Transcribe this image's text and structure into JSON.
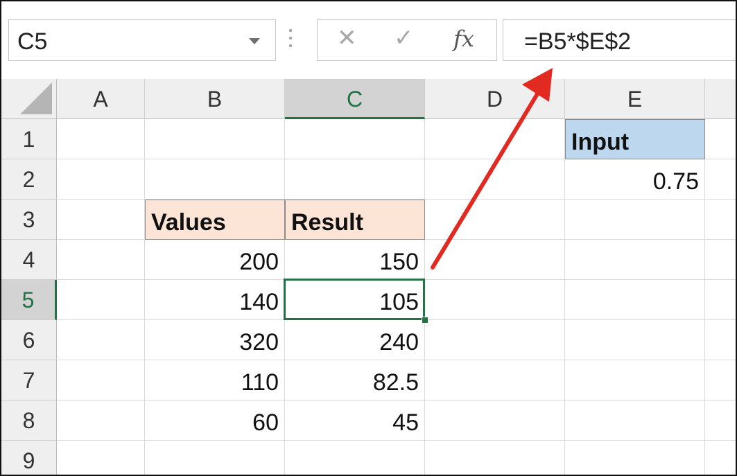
{
  "formula_bar": {
    "name_box": "C5",
    "cancel_icon": "x-icon",
    "enter_icon": "check-icon",
    "function_label": "fx",
    "formula": "=B5*$E$2"
  },
  "grid": {
    "columns": [
      "A",
      "B",
      "C",
      "D",
      "E"
    ],
    "rows": [
      "1",
      "2",
      "3",
      "4",
      "5",
      "6",
      "7",
      "8",
      "9"
    ],
    "selected_cell": "C5",
    "cells": {
      "E1": "Input",
      "E2": "0.75",
      "B3": "Values",
      "C3": "Result",
      "B4": "200",
      "C4": "150",
      "B5": "140",
      "C5": "105",
      "B6": "320",
      "C6": "240",
      "B7": "110",
      "C7": "82.5",
      "B8": "60",
      "C8": "45"
    }
  },
  "colors": {
    "header_fill": "#fce4d6",
    "input_fill": "#bdd7ee",
    "selection": "#217346",
    "arrow": "#e02a22"
  }
}
